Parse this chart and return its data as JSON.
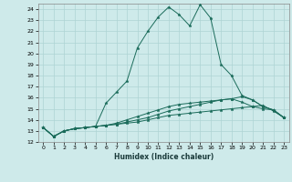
{
  "xlabel": "Humidex (Indice chaleur)",
  "bg_color": "#ceeaea",
  "grid_color": "#aed4d4",
  "line_color": "#1a6b5a",
  "xlim": [
    -0.5,
    23.5
  ],
  "ylim": [
    12,
    24.5
  ],
  "yticks": [
    12,
    13,
    14,
    15,
    16,
    17,
    18,
    19,
    20,
    21,
    22,
    23,
    24
  ],
  "xticks": [
    0,
    1,
    2,
    3,
    4,
    5,
    6,
    7,
    8,
    9,
    10,
    11,
    12,
    13,
    14,
    15,
    16,
    17,
    18,
    19,
    20,
    21,
    22,
    23
  ],
  "lines": [
    {
      "x": [
        0,
        1,
        2,
        3,
        4,
        5,
        6,
        7,
        8,
        9,
        10,
        11,
        12,
        13,
        14,
        15,
        16,
        17,
        18,
        19,
        20,
        21,
        22,
        23
      ],
      "y": [
        13.3,
        12.5,
        13.0,
        13.2,
        13.3,
        13.4,
        15.5,
        16.5,
        17.5,
        20.5,
        22.0,
        23.3,
        24.2,
        23.5,
        22.5,
        24.4,
        23.2,
        19.0,
        18.0,
        16.2,
        15.8,
        15.2,
        14.9,
        14.2
      ],
      "marker": true
    },
    {
      "x": [
        0,
        1,
        2,
        3,
        4,
        5,
        6,
        7,
        8,
        9,
        10,
        11,
        12,
        13,
        14,
        15,
        16,
        17,
        18,
        19,
        20,
        21,
        22,
        23
      ],
      "y": [
        13.3,
        12.5,
        13.0,
        13.2,
        13.3,
        13.4,
        13.5,
        13.6,
        13.7,
        13.8,
        14.0,
        14.2,
        14.4,
        14.5,
        14.6,
        14.7,
        14.8,
        14.9,
        15.0,
        15.1,
        15.2,
        15.3,
        14.8,
        14.2
      ],
      "marker": true
    },
    {
      "x": [
        0,
        1,
        2,
        3,
        4,
        5,
        6,
        7,
        8,
        9,
        10,
        11,
        12,
        13,
        14,
        15,
        16,
        17,
        18,
        19,
        20,
        21,
        22,
        23
      ],
      "y": [
        13.3,
        12.5,
        13.0,
        13.2,
        13.3,
        13.4,
        13.5,
        13.6,
        13.8,
        14.0,
        14.2,
        14.5,
        14.8,
        15.0,
        15.2,
        15.4,
        15.6,
        15.8,
        15.9,
        16.1,
        15.8,
        15.2,
        14.9,
        14.2
      ],
      "marker": true
    },
    {
      "x": [
        0,
        1,
        2,
        3,
        4,
        5,
        6,
        7,
        8,
        9,
        10,
        11,
        12,
        13,
        14,
        15,
        16,
        17,
        18,
        19,
        20,
        21,
        22,
        23
      ],
      "y": [
        13.3,
        12.5,
        13.0,
        13.2,
        13.3,
        13.4,
        13.5,
        13.7,
        14.0,
        14.3,
        14.6,
        14.9,
        15.2,
        15.4,
        15.5,
        15.6,
        15.7,
        15.8,
        15.9,
        15.6,
        15.2,
        15.0,
        14.9,
        14.2
      ],
      "marker": true
    }
  ]
}
